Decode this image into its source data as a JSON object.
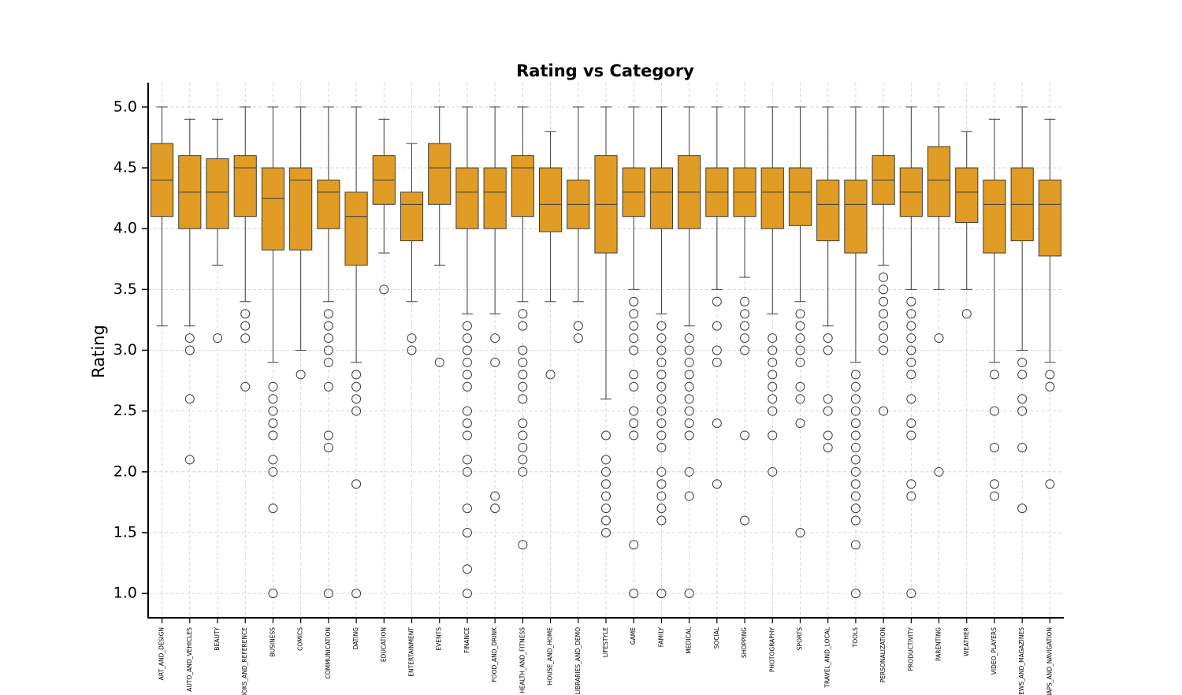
{
  "chart_data": {
    "type": "box",
    "title": "Rating vs Category",
    "y_label": "Rating",
    "color": "#e09c24",
    "categories": [
      "ART_AND_DESIGN",
      "AUTO_AND_VEHICLES",
      "BEAUTY",
      "BOOKS_AND_REFERENCE",
      "BUSINESS",
      "COMICS",
      "COMMUNICATION",
      "DATING",
      "EDUCATION",
      "ENTERTAINMENT",
      "EVENTS",
      "FINANCE",
      "FOOD_AND_DRINK",
      "HEALTH_AND_FITNESS",
      "HOUSE_AND_HOME",
      "LIBRARIES_AND_DEMO",
      "LIFESTYLE",
      "GAME",
      "FAMILY",
      "MEDICAL",
      "SOCIAL",
      "SHOPPING",
      "PHOTOGRAPHY",
      "SPORTS",
      "TRAVEL_AND_LOCAL",
      "TOOLS",
      "PERSONALIZATION",
      "PRODUCTIVITY",
      "PARENTING",
      "WEATHER",
      "VIDEO_PLAYERS",
      "NEWS_AND_MAGAZINES",
      "MAPS_AND_NAVIGATION"
    ],
    "boxes": [
      {
        "low": 3.2,
        "q1": 4.1,
        "median": 4.4,
        "q3": 4.7,
        "high": 5.0,
        "outliers": []
      },
      {
        "low": 3.2,
        "q1": 4.0,
        "median": 4.3,
        "q3": 4.6,
        "high": 4.9,
        "outliers": [
          3.1,
          3.0,
          2.6,
          2.1
        ]
      },
      {
        "low": 3.7,
        "q1": 4.0,
        "median": 4.3,
        "q3": 4.575,
        "high": 4.9,
        "outliers": [
          3.1
        ]
      },
      {
        "low": 3.4,
        "q1": 4.1,
        "median": 4.5,
        "q3": 4.6,
        "high": 5.0,
        "outliers": [
          3.3,
          3.2,
          3.1,
          2.7
        ]
      },
      {
        "low": 2.9,
        "q1": 3.825,
        "median": 4.25,
        "q3": 4.5,
        "high": 5.0,
        "outliers": [
          2.7,
          2.6,
          2.5,
          2.4,
          2.3,
          2.1,
          2.0,
          1.7,
          1.0
        ]
      },
      {
        "low": 3.0,
        "q1": 3.825,
        "median": 4.4,
        "q3": 4.5,
        "high": 5.0,
        "outliers": [
          2.8
        ]
      },
      {
        "low": 3.4,
        "q1": 4.0,
        "median": 4.3,
        "q3": 4.4,
        "high": 5.0,
        "outliers": [
          3.3,
          3.2,
          3.1,
          3.0,
          2.9,
          2.7,
          2.3,
          2.2,
          1.0
        ]
      },
      {
        "low": 2.9,
        "q1": 3.7,
        "median": 4.1,
        "q3": 4.3,
        "high": 5.0,
        "outliers": [
          2.8,
          2.7,
          2.6,
          2.5,
          1.9,
          1.0
        ]
      },
      {
        "low": 3.8,
        "q1": 4.2,
        "median": 4.4,
        "q3": 4.6,
        "high": 4.9,
        "outliers": [
          3.5
        ]
      },
      {
        "low": 3.4,
        "q1": 3.9,
        "median": 4.2,
        "q3": 4.3,
        "high": 4.7,
        "outliers": [
          3.1,
          3.0
        ]
      },
      {
        "low": 3.7,
        "q1": 4.2,
        "median": 4.5,
        "q3": 4.7,
        "high": 5.0,
        "outliers": [
          2.9
        ]
      },
      {
        "low": 3.3,
        "q1": 4.0,
        "median": 4.3,
        "q3": 4.5,
        "high": 5.0,
        "outliers": [
          3.2,
          3.1,
          3.0,
          2.9,
          2.8,
          2.7,
          2.5,
          2.4,
          2.3,
          2.1,
          2.0,
          1.7,
          1.5,
          1.2,
          1.0
        ]
      },
      {
        "low": 3.3,
        "q1": 4.0,
        "median": 4.3,
        "q3": 4.5,
        "high": 5.0,
        "outliers": [
          3.1,
          2.9,
          1.8,
          1.7
        ]
      },
      {
        "low": 3.4,
        "q1": 4.1,
        "median": 4.5,
        "q3": 4.6,
        "high": 5.0,
        "outliers": [
          3.3,
          3.2,
          3.0,
          2.9,
          2.8,
          2.7,
          2.6,
          2.4,
          2.3,
          2.2,
          2.1,
          2.0,
          1.4
        ]
      },
      {
        "low": 3.4,
        "q1": 3.975,
        "median": 4.2,
        "q3": 4.5,
        "high": 4.8,
        "outliers": [
          2.8
        ]
      },
      {
        "low": 3.4,
        "q1": 4.0,
        "median": 4.2,
        "q3": 4.4,
        "high": 5.0,
        "outliers": [
          3.2,
          3.1
        ]
      },
      {
        "low": 2.6,
        "q1": 3.8,
        "median": 4.2,
        "q3": 4.6,
        "high": 5.0,
        "outliers": [
          2.3,
          2.1,
          2.0,
          1.9,
          1.8,
          1.7,
          1.6,
          1.5
        ]
      },
      {
        "low": 3.5,
        "q1": 4.1,
        "median": 4.3,
        "q3": 4.5,
        "high": 5.0,
        "outliers": [
          3.4,
          3.3,
          3.2,
          3.1,
          3.0,
          2.8,
          2.7,
          2.5,
          2.4,
          2.3,
          1.4,
          1.0
        ]
      },
      {
        "low": 3.3,
        "q1": 4.0,
        "median": 4.3,
        "q3": 4.5,
        "high": 5.0,
        "outliers": [
          3.2,
          3.1,
          3.0,
          2.9,
          2.8,
          2.7,
          2.6,
          2.5,
          2.4,
          2.3,
          2.2,
          2.0,
          1.9,
          1.8,
          1.7,
          1.6,
          1.0
        ]
      },
      {
        "low": 3.2,
        "q1": 4.0,
        "median": 4.3,
        "q3": 4.6,
        "high": 5.0,
        "outliers": [
          3.1,
          3.0,
          2.9,
          2.8,
          2.7,
          2.6,
          2.5,
          2.4,
          2.3,
          2.0,
          1.8,
          1.0
        ]
      },
      {
        "low": 3.5,
        "q1": 4.1,
        "median": 4.3,
        "q3": 4.5,
        "high": 5.0,
        "outliers": [
          3.4,
          3.2,
          3.0,
          2.9,
          2.4,
          1.9
        ]
      },
      {
        "low": 3.6,
        "q1": 4.1,
        "median": 4.3,
        "q3": 4.5,
        "high": 5.0,
        "outliers": [
          3.4,
          3.3,
          3.2,
          3.1,
          3.0,
          2.3,
          1.6
        ]
      },
      {
        "low": 3.3,
        "q1": 4.0,
        "median": 4.3,
        "q3": 4.5,
        "high": 5.0,
        "outliers": [
          3.1,
          3.0,
          2.9,
          2.8,
          2.7,
          2.6,
          2.5,
          2.3,
          2.0
        ]
      },
      {
        "low": 3.4,
        "q1": 4.025,
        "median": 4.3,
        "q3": 4.5,
        "high": 5.0,
        "outliers": [
          3.3,
          3.2,
          3.1,
          3.0,
          2.9,
          2.7,
          2.6,
          2.4,
          1.5
        ]
      },
      {
        "low": 3.2,
        "q1": 3.9,
        "median": 4.2,
        "q3": 4.4,
        "high": 5.0,
        "outliers": [
          3.1,
          3.0,
          2.6,
          2.5,
          2.3,
          2.2
        ]
      },
      {
        "low": 2.9,
        "q1": 3.8,
        "median": 4.2,
        "q3": 4.4,
        "high": 5.0,
        "outliers": [
          2.8,
          2.7,
          2.6,
          2.5,
          2.4,
          2.3,
          2.2,
          2.1,
          2.0,
          1.9,
          1.8,
          1.7,
          1.6,
          1.4,
          1.0
        ]
      },
      {
        "low": 3.7,
        "q1": 4.2,
        "median": 4.4,
        "q3": 4.6,
        "high": 5.0,
        "outliers": [
          3.6,
          3.5,
          3.4,
          3.3,
          3.2,
          3.1,
          3.0,
          2.5
        ]
      },
      {
        "low": 3.5,
        "q1": 4.1,
        "median": 4.3,
        "q3": 4.5,
        "high": 5.0,
        "outliers": [
          3.4,
          3.3,
          3.2,
          3.1,
          3.0,
          2.9,
          2.8,
          2.6,
          2.4,
          2.3,
          1.9,
          1.8,
          1.0
        ]
      },
      {
        "low": 3.5,
        "q1": 4.1,
        "median": 4.4,
        "q3": 4.675,
        "high": 5.0,
        "outliers": [
          3.1,
          2.0
        ]
      },
      {
        "low": 3.5,
        "q1": 4.05,
        "median": 4.3,
        "q3": 4.5,
        "high": 4.8,
        "outliers": [
          3.3
        ]
      },
      {
        "low": 2.9,
        "q1": 3.8,
        "median": 4.2,
        "q3": 4.4,
        "high": 4.9,
        "outliers": [
          2.8,
          2.5,
          2.2,
          1.9,
          1.8
        ]
      },
      {
        "low": 3.0,
        "q1": 3.9,
        "median": 4.2,
        "q3": 4.5,
        "high": 5.0,
        "outliers": [
          2.9,
          2.8,
          2.6,
          2.5,
          2.2,
          1.7
        ]
      },
      {
        "low": 2.9,
        "q1": 3.775,
        "median": 4.2,
        "q3": 4.4,
        "high": 4.9,
        "outliers": [
          2.8,
          2.7,
          1.9
        ]
      }
    ],
    "ylim": [
      0.8,
      5.2
    ],
    "yticks": [
      {
        "value": 1,
        "label": "1.0"
      },
      {
        "value": 1.5,
        "label": "1.5"
      },
      {
        "value": 2,
        "label": "2.0"
      },
      {
        "value": 2.5,
        "label": "2.5"
      },
      {
        "value": 3,
        "label": "3.0"
      },
      {
        "value": 3.5,
        "label": "3.5"
      },
      {
        "value": 4,
        "label": "4.0"
      },
      {
        "value": 4.5,
        "label": "4.5"
      },
      {
        "value": 5,
        "label": "5.0"
      }
    ],
    "grid": true
  }
}
